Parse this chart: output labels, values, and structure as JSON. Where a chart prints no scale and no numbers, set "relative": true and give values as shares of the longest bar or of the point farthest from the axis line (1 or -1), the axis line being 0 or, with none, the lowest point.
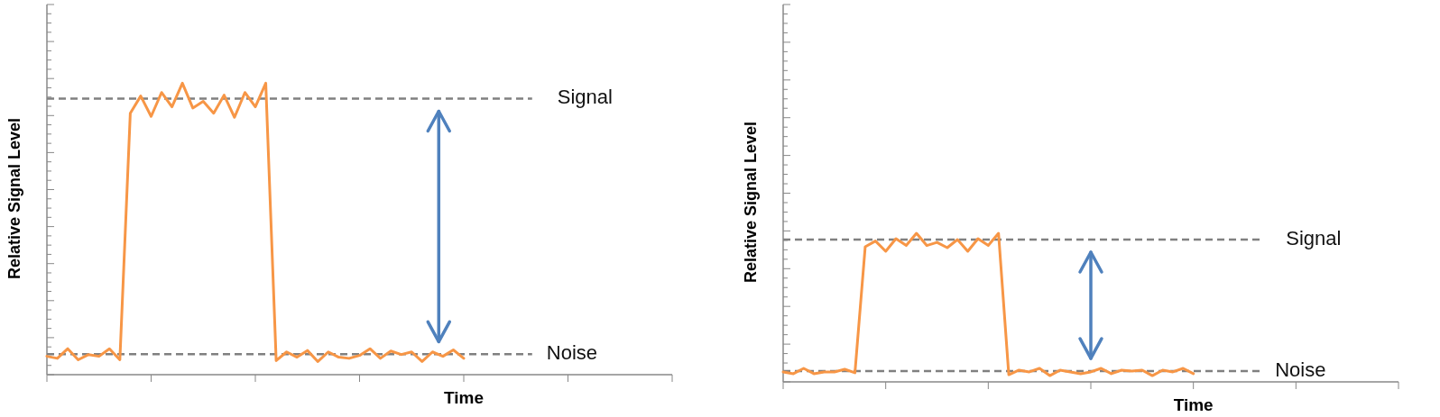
{
  "chart_data": [
    {
      "type": "line",
      "relative": true,
      "xlabel": "Time",
      "ylabel": "Relative Signal Level",
      "categories": [
        null,
        null,
        null,
        null,
        null,
        null,
        null,
        null,
        null,
        null,
        null,
        null,
        null,
        null,
        null,
        null,
        null,
        null,
        null,
        null,
        null,
        null,
        null,
        null,
        null,
        null,
        null,
        null,
        null,
        null,
        null,
        null,
        null,
        null,
        null,
        null,
        null,
        null,
        null,
        null,
        null
      ],
      "series": [
        {
          "color": "#f79646",
          "values": [
            0.063,
            0.056,
            0.089,
            0.051,
            0.069,
            0.063,
            0.089,
            0.051,
            0.897,
            0.956,
            0.886,
            0.968,
            0.919,
            1,
            0.915,
            0.938,
            0.897,
            0.959,
            0.883,
            0.968,
            0.919,
            1,
            0.048,
            0.078,
            0.06,
            0.083,
            0.045,
            0.078,
            0.06,
            0.056,
            0.066,
            0.089,
            0.056,
            0.081,
            0.069,
            0.078,
            0.045,
            0.078,
            0.063,
            0.085,
            0.056
          ]
        }
      ],
      "ref_lines": [
        {
          "axis": "y",
          "value": 0.947,
          "label": "Signal",
          "color": "#808080",
          "line_style": "dashed"
        },
        {
          "axis": "y",
          "value": 0.07,
          "label": "Noise",
          "color": "#808080",
          "line_style": "dashed"
        }
      ]
    },
    {
      "type": "line",
      "relative": true,
      "xlabel": "Time",
      "ylabel": "Relative Signal Level",
      "categories": [
        null,
        null,
        null,
        null,
        null,
        null,
        null,
        null,
        null,
        null,
        null,
        null,
        null,
        null,
        null,
        null,
        null,
        null,
        null,
        null,
        null,
        null,
        null,
        null,
        null,
        null,
        null,
        null,
        null,
        null,
        null,
        null,
        null,
        null,
        null,
        null,
        null,
        null,
        null,
        null,
        null
      ],
      "series": [
        {
          "color": "#f79646",
          "values": [
            0.067,
            0.055,
            0.091,
            0.055,
            0.067,
            0.067,
            0.085,
            0.061,
            0.909,
            0.948,
            0.879,
            0.964,
            0.918,
            1,
            0.918,
            0.939,
            0.903,
            0.958,
            0.879,
            0.964,
            0.918,
            1,
            0.048,
            0.079,
            0.067,
            0.091,
            0.042,
            0.079,
            0.067,
            0.055,
            0.067,
            0.091,
            0.055,
            0.079,
            0.073,
            0.079,
            0.042,
            0.079,
            0.067,
            0.091,
            0.055
          ]
        }
      ],
      "ref_lines": [
        {
          "axis": "y",
          "value": 0.958,
          "label": "Signal",
          "color": "#808080",
          "line_style": "dashed"
        },
        {
          "axis": "y",
          "value": 0.073,
          "label": "Noise",
          "color": "#808080",
          "line_style": "dashed"
        }
      ]
    }
  ]
}
